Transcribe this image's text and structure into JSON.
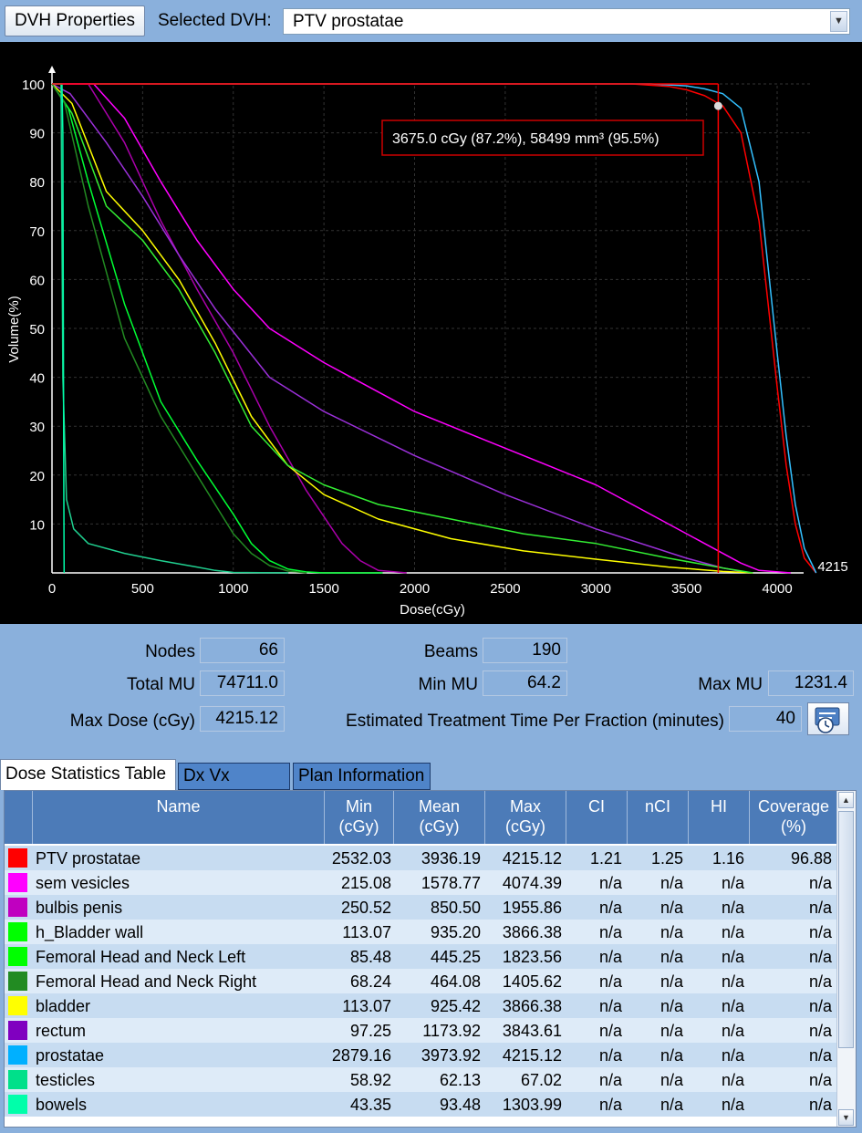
{
  "toolbar": {
    "dvh_properties_label": "DVH Properties",
    "selected_dvh_label": "Selected DVH:",
    "selected_dvh_value": "PTV prostatae"
  },
  "chart_data": {
    "type": "line",
    "xlabel": "Dose(cGy)",
    "ylabel": "Volume(%)",
    "xlim": [
      0,
      4215
    ],
    "ylim": [
      0,
      100
    ],
    "x_ticks": [
      "0",
      "500",
      "1000",
      "1500",
      "2000",
      "2500",
      "3000",
      "3500",
      "4000"
    ],
    "y_ticks": [
      "10",
      "20",
      "30",
      "40",
      "50",
      "60",
      "70",
      "80",
      "90",
      "100"
    ],
    "x_max_label": "4215",
    "cursor": {
      "dose": 3675,
      "volume": 95.5
    },
    "tooltip": "3675.0 cGy (87.2%), 58499 mm³ (95.5%)",
    "grid": true,
    "series": [
      {
        "color": "#ff0000",
        "x": [
          0,
          3200,
          3400,
          3500,
          3600,
          3700,
          3800,
          3900,
          3950,
          4000,
          4050,
          4100,
          4150,
          4215
        ],
        "y": [
          100,
          100,
          99.5,
          98.8,
          97.6,
          95.5,
          90,
          72,
          55,
          38,
          22,
          10,
          3,
          0
        ]
      },
      {
        "color": "#33c0ff",
        "x": [
          0,
          3300,
          3500,
          3600,
          3700,
          3800,
          3900,
          4000,
          4050,
          4100,
          4150,
          4215
        ],
        "y": [
          100,
          100,
          99.6,
          99,
          98,
          95,
          80,
          45,
          28,
          14,
          5,
          0
        ]
      },
      {
        "color": "#ff00ff",
        "x": [
          0,
          230,
          400,
          600,
          800,
          1000,
          1200,
          1500,
          1800,
          2000,
          2400,
          2800,
          3000,
          3400,
          3600,
          3800,
          3900,
          4075
        ],
        "y": [
          100,
          100,
          93,
          80,
          68,
          58,
          50,
          43,
          37,
          33,
          27,
          21,
          18,
          10,
          6,
          2,
          0.5,
          0
        ]
      },
      {
        "color": "#aa00aa",
        "x": [
          0,
          200,
          400,
          600,
          800,
          1000,
          1200,
          1400,
          1600,
          1700,
          1800,
          1956
        ],
        "y": [
          100,
          100,
          88,
          72,
          58,
          45,
          30,
          17,
          6,
          2.5,
          0.5,
          0
        ]
      },
      {
        "color": "#9b30d9",
        "x": [
          0,
          100,
          300,
          500,
          700,
          900,
          1200,
          1500,
          2000,
          2500,
          3000,
          3500,
          3700,
          3844
        ],
        "y": [
          100,
          98,
          88,
          77,
          65,
          54,
          40,
          33,
          24,
          16,
          9,
          3,
          1,
          0
        ]
      },
      {
        "color": "#ffff00",
        "x": [
          0,
          110,
          300,
          500,
          700,
          900,
          1100,
          1300,
          1500,
          1800,
          2200,
          2600,
          3000,
          3400,
          3700,
          3866
        ],
        "y": [
          100,
          96,
          78,
          70,
          60,
          47,
          32,
          22,
          16,
          11,
          7,
          4.5,
          2.8,
          1.2,
          0.3,
          0
        ]
      },
      {
        "color": "#33ee33",
        "x": [
          0,
          110,
          300,
          500,
          700,
          900,
          1100,
          1300,
          1500,
          1800,
          2200,
          2600,
          3000,
          3400,
          3700,
          3866
        ],
        "y": [
          100,
          94,
          75,
          68,
          58,
          45,
          30,
          22,
          18,
          14,
          11,
          8,
          6,
          3,
          1,
          0
        ]
      },
      {
        "color": "#00ff33",
        "x": [
          0,
          90,
          200,
          400,
          600,
          800,
          1000,
          1100,
          1200,
          1300,
          1400,
          1500,
          1824
        ],
        "y": [
          100,
          95,
          80,
          55,
          35,
          23,
          12,
          6,
          2.5,
          0.8,
          0.2,
          0,
          0
        ]
      },
      {
        "color": "#228b22",
        "x": [
          0,
          70,
          200,
          400,
          600,
          800,
          900,
          1000,
          1100,
          1200,
          1300,
          1406
        ],
        "y": [
          100,
          96,
          75,
          48,
          32,
          20,
          14,
          8,
          4,
          1.5,
          0.4,
          0
        ]
      },
      {
        "color": "#20d090",
        "x": [
          0,
          50,
          60,
          80,
          120,
          200,
          400,
          600,
          800,
          900,
          1000,
          1304
        ],
        "y": [
          100,
          100,
          40,
          15,
          9,
          6,
          4,
          2.5,
          1.2,
          0.5,
          0.1,
          0
        ]
      },
      {
        "color": "#00ffaa",
        "x": [
          0,
          55,
          60,
          62,
          65,
          67
        ],
        "y": [
          100,
          100,
          90,
          60,
          20,
          0
        ]
      }
    ]
  },
  "info": {
    "nodes_label": "Nodes",
    "nodes_value": "66",
    "beams_label": "Beams",
    "beams_value": "190",
    "total_mu_label": "Total MU",
    "total_mu_value": "74711.0",
    "min_mu_label": "Min MU",
    "min_mu_value": "64.2",
    "max_mu_label": "Max MU",
    "max_mu_value": "1231.4",
    "max_dose_label": "Max Dose (cGy)",
    "max_dose_value": "4215.12",
    "est_time_label": "Estimated Treatment Time Per Fraction (minutes)",
    "est_time_value": "40",
    "timer_icon": "stopwatch-icon"
  },
  "tabs": [
    {
      "label": "Dose Statistics Table",
      "active": true
    },
    {
      "label": "Dx Vx Values",
      "active": false
    },
    {
      "label": "Plan Information",
      "active": false
    }
  ],
  "table": {
    "headers": {
      "name": "Name",
      "min": [
        "Min",
        "(cGy)"
      ],
      "mean": [
        "Mean",
        "(cGy)"
      ],
      "max": [
        "Max",
        "(cGy)"
      ],
      "ci": "CI",
      "nci": "nCI",
      "hi": "HI",
      "coverage": [
        "Coverage",
        "(%)"
      ]
    },
    "rows": [
      {
        "color": "#ff0000",
        "name": "PTV prostatae",
        "min": "2532.03",
        "mean": "3936.19",
        "max": "4215.12",
        "ci": "1.21",
        "nci": "1.25",
        "hi": "1.16",
        "coverage": "96.88"
      },
      {
        "color": "#ff00ff",
        "name": "sem vesicles",
        "min": "215.08",
        "mean": "1578.77",
        "max": "4074.39",
        "ci": "n/a",
        "nci": "n/a",
        "hi": "n/a",
        "coverage": "n/a"
      },
      {
        "color": "#c000c0",
        "name": "bulbis penis",
        "min": "250.52",
        "mean": "850.50",
        "max": "1955.86",
        "ci": "n/a",
        "nci": "n/a",
        "hi": "n/a",
        "coverage": "n/a"
      },
      {
        "color": "#00ff00",
        "name": "h_Bladder wall",
        "min": "113.07",
        "mean": "935.20",
        "max": "3866.38",
        "ci": "n/a",
        "nci": "n/a",
        "hi": "n/a",
        "coverage": "n/a"
      },
      {
        "color": "#00ff00",
        "name": "Femoral Head and Neck Left",
        "min": "85.48",
        "mean": "445.25",
        "max": "1823.56",
        "ci": "n/a",
        "nci": "n/a",
        "hi": "n/a",
        "coverage": "n/a"
      },
      {
        "color": "#228b22",
        "name": "Femoral Head and Neck Right",
        "min": "68.24",
        "mean": "464.08",
        "max": "1405.62",
        "ci": "n/a",
        "nci": "n/a",
        "hi": "n/a",
        "coverage": "n/a"
      },
      {
        "color": "#ffff00",
        "name": "bladder",
        "min": "113.07",
        "mean": "925.42",
        "max": "3866.38",
        "ci": "n/a",
        "nci": "n/a",
        "hi": "n/a",
        "coverage": "n/a"
      },
      {
        "color": "#8000c0",
        "name": "rectum",
        "min": "97.25",
        "mean": "1173.92",
        "max": "3843.61",
        "ci": "n/a",
        "nci": "n/a",
        "hi": "n/a",
        "coverage": "n/a"
      },
      {
        "color": "#00b0ff",
        "name": "prostatae",
        "min": "2879.16",
        "mean": "3973.92",
        "max": "4215.12",
        "ci": "n/a",
        "nci": "n/a",
        "hi": "n/a",
        "coverage": "n/a"
      },
      {
        "color": "#00e08a",
        "name": "testicles",
        "min": "58.92",
        "mean": "62.13",
        "max": "67.02",
        "ci": "n/a",
        "nci": "n/a",
        "hi": "n/a",
        "coverage": "n/a"
      },
      {
        "color": "#00ffaa",
        "name": "bowels",
        "min": "43.35",
        "mean": "93.48",
        "max": "1303.99",
        "ci": "n/a",
        "nci": "n/a",
        "hi": "n/a",
        "coverage": "n/a"
      }
    ]
  }
}
